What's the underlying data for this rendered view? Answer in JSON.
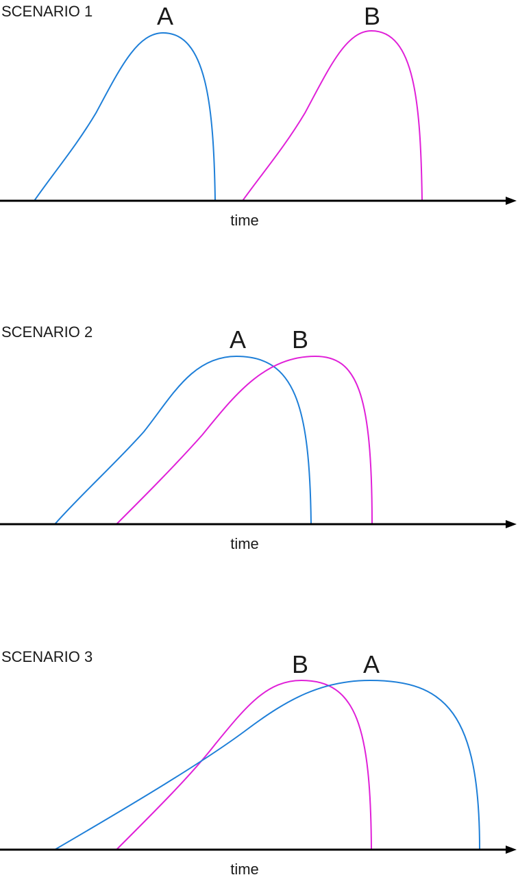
{
  "colors": {
    "A": "#1e7fd8",
    "B": "#e020d8",
    "axis": "#000000",
    "text": "#1a1a1a"
  },
  "scenarios": [
    {
      "title": "SCENARIO 1",
      "axis_label": "time",
      "curves": [
        {
          "id": "A",
          "label": "A"
        },
        {
          "id": "B",
          "label": "B"
        }
      ]
    },
    {
      "title": "SCENARIO 2",
      "axis_label": "time",
      "curves": [
        {
          "id": "A",
          "label": "A"
        },
        {
          "id": "B",
          "label": "B"
        }
      ]
    },
    {
      "title": "SCENARIO 3",
      "axis_label": "time",
      "curves": [
        {
          "id": "B",
          "label": "B"
        },
        {
          "id": "A",
          "label": "A"
        }
      ]
    }
  ]
}
